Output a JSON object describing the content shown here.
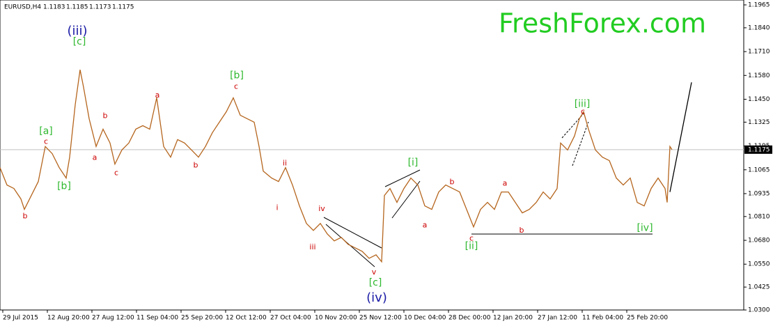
{
  "chart_data": {
    "type": "line",
    "symbol": "EURUSD,H4",
    "ohlc": [
      1.1183,
      1.1185,
      1.1173,
      1.1175
    ],
    "watermark": "FreshForex.com",
    "last_price": 1.1175,
    "xlim": [
      -1,
      266
    ],
    "ylim": [
      1.03,
      1.1965
    ],
    "xticks": [
      {
        "value": 0,
        "label": "29 Jul 2015"
      },
      {
        "value": 16,
        "label": "12 Aug 20:00"
      },
      {
        "value": 32,
        "label": "27 Aug 12:00"
      },
      {
        "value": 48,
        "label": "11 Sep 04:00"
      },
      {
        "value": 64,
        "label": "25 Sep 20:00"
      },
      {
        "value": 80,
        "label": "12 Oct 12:00"
      },
      {
        "value": 96,
        "label": "27 Oct 04:00"
      },
      {
        "value": 112,
        "label": "10 Nov 20:00"
      },
      {
        "value": 128,
        "label": "25 Nov 12:00"
      },
      {
        "value": 144,
        "label": "10 Dec 04:00"
      },
      {
        "value": 160,
        "label": "28 Dec 00:00"
      },
      {
        "value": 176,
        "label": "12 Jan 20:00"
      },
      {
        "value": 192,
        "label": "27 Jan 12:00"
      },
      {
        "value": 208,
        "label": "11 Feb 04:00"
      },
      {
        "value": 224,
        "label": "25 Feb 20:00"
      }
    ],
    "yticks": [
      {
        "value": 1.1965,
        "label": "1.1965"
      },
      {
        "value": 1.184,
        "label": "1.1840"
      },
      {
        "value": 1.171,
        "label": "1.1710"
      },
      {
        "value": 1.158,
        "label": "1.1580"
      },
      {
        "value": 1.145,
        "label": "1.1450"
      },
      {
        "value": 1.1325,
        "label": "1.1325"
      },
      {
        "value": 1.1195,
        "label": "1.1195"
      },
      {
        "value": 1.1065,
        "label": "1.1065"
      },
      {
        "value": 1.0935,
        "label": "1.0935"
      },
      {
        "value": 1.081,
        "label": "1.0810"
      },
      {
        "value": 1.068,
        "label": "1.0680"
      },
      {
        "value": 1.055,
        "label": "1.0550"
      },
      {
        "value": 1.0425,
        "label": "1.0425"
      },
      {
        "value": 1.03,
        "label": "1.0300"
      }
    ],
    "series": [
      {
        "name": "EURUSD",
        "color": "#b5651d",
        "x": [
          -1,
          1.5,
          4,
          6.5,
          7.75,
          10.25,
          12.75,
          15.25,
          17.75,
          20.25,
          22.75,
          24,
          26,
          27.75,
          29,
          31,
          33.5,
          36,
          38.5,
          40.25,
          42.75,
          45.25,
          47.75,
          50.25,
          52.75,
          55.25,
          57.75,
          60.25,
          62.75,
          65.25,
          67.75,
          70.25,
          72.75,
          75.25,
          77.75,
          80.25,
          82.75,
          85.25,
          87.75,
          90.25,
          92,
          93.5,
          96.5,
          99,
          101.5,
          104,
          106.5,
          109,
          111.5,
          114,
          116.5,
          119,
          121.5,
          124,
          126.5,
          129,
          131.5,
          134,
          136,
          137,
          139,
          141.5,
          144,
          146.5,
          149,
          151.5,
          154,
          156.5,
          159,
          161.5,
          164,
          166.5,
          169,
          171.5,
          174,
          176.5,
          179,
          181.5,
          184,
          186.5,
          189,
          191.5,
          194,
          196.5,
          199,
          200.25,
          202.75,
          205.25,
          207,
          208.5,
          210.25,
          212.75,
          215.25,
          217.75,
          220.25,
          222.75,
          225.25,
          227.75,
          230.25,
          232.75,
          235.25,
          237.75,
          238.5,
          239.5,
          240.25
        ],
        "values": [
          1.1077,
          1.0982,
          1.0963,
          1.0906,
          1.0849,
          1.0925,
          1.1001,
          1.1192,
          1.1153,
          1.1077,
          1.102,
          1.1134,
          1.142,
          1.1611,
          1.1515,
          1.1344,
          1.1192,
          1.1287,
          1.1211,
          1.1096,
          1.1173,
          1.1211,
          1.1287,
          1.1306,
          1.1287,
          1.1458,
          1.1192,
          1.1134,
          1.123,
          1.1211,
          1.1173,
          1.1134,
          1.1192,
          1.1268,
          1.1325,
          1.1382,
          1.1458,
          1.1363,
          1.1344,
          1.1325,
          1.1192,
          1.1058,
          1.102,
          1.1001,
          1.1077,
          1.0982,
          1.0868,
          1.0772,
          1.0734,
          1.0772,
          1.0715,
          1.0677,
          1.0696,
          1.0658,
          1.0639,
          1.062,
          1.0582,
          1.0601,
          1.0563,
          1.0925,
          1.0963,
          1.0887,
          1.0963,
          1.102,
          1.0982,
          1.0868,
          1.0849,
          1.0944,
          1.0982,
          1.0963,
          1.0944,
          1.0849,
          1.0753,
          1.0849,
          1.0887,
          1.0849,
          1.0944,
          1.0944,
          1.0887,
          1.083,
          1.0849,
          1.0887,
          1.0944,
          1.0906,
          1.0963,
          1.1211,
          1.1173,
          1.125,
          1.1344,
          1.1382,
          1.1287,
          1.1173,
          1.1134,
          1.1115,
          1.102,
          1.0982,
          1.102,
          1.0887,
          1.0868,
          1.0963,
          1.102,
          1.0963,
          1.0887,
          1.1192,
          1.1175
        ]
      },
      {
        "name": "Projection",
        "color": "#000000",
        "x": [
          239.5,
          247.25
        ],
        "values": [
          1.0944,
          1.1542
        ]
      }
    ],
    "annotations": [
      {
        "text": "(iii)",
        "x": 26.75,
        "y": 1.182,
        "color": "#1a1aa6"
      },
      {
        "text": "[c]",
        "x": 27.5,
        "y": 1.1763,
        "color": "#2eb82e"
      },
      {
        "text": "[a]",
        "x": 15.5,
        "y": 1.1275,
        "color": "#2eb82e"
      },
      {
        "text": "c",
        "x": 15.5,
        "y": 1.1218,
        "color": "#cc0000"
      },
      {
        "text": "[b]",
        "x": 22,
        "y": 1.0974,
        "color": "#2eb82e"
      },
      {
        "text": "b",
        "x": 8,
        "y": 1.0811,
        "color": "#cc0000"
      },
      {
        "text": "a",
        "x": 33,
        "y": 1.1131,
        "color": "#cc0000"
      },
      {
        "text": "b",
        "x": 36.75,
        "y": 1.1359,
        "color": "#cc0000"
      },
      {
        "text": "c",
        "x": 40.75,
        "y": 1.1047,
        "color": "#cc0000"
      },
      {
        "text": "a",
        "x": 55.5,
        "y": 1.147,
        "color": "#cc0000"
      },
      {
        "text": "b",
        "x": 69.25,
        "y": 1.1089,
        "color": "#cc0000"
      },
      {
        "text": "[b]",
        "x": 84,
        "y": 1.158,
        "color": "#2eb82e"
      },
      {
        "text": "c",
        "x": 83.75,
        "y": 1.1519,
        "color": "#cc0000"
      },
      {
        "text": "ii",
        "x": 101.25,
        "y": 1.11,
        "color": "#cc0000"
      },
      {
        "text": "i",
        "x": 98.5,
        "y": 1.0856,
        "color": "#cc0000"
      },
      {
        "text": "iv",
        "x": 114.5,
        "y": 1.0852,
        "color": "#cc0000"
      },
      {
        "text": "iii",
        "x": 111.25,
        "y": 1.0643,
        "color": "#cc0000"
      },
      {
        "text": "v",
        "x": 133.25,
        "y": 1.0506,
        "color": "#cc0000"
      },
      {
        "text": "[c]",
        "x": 133.75,
        "y": 1.0449,
        "color": "#2eb82e"
      },
      {
        "text": "(iv)",
        "x": 134.25,
        "y": 1.0365,
        "color": "#1a1aa6"
      },
      {
        "text": "[i]",
        "x": 147.25,
        "y": 1.1104,
        "color": "#2eb82e"
      },
      {
        "text": "b",
        "x": 161.25,
        "y": 1.0997,
        "color": "#cc0000"
      },
      {
        "text": "a",
        "x": 151.5,
        "y": 1.0761,
        "color": "#cc0000"
      },
      {
        "text": "a",
        "x": 180.25,
        "y": 1.099,
        "color": "#cc0000"
      },
      {
        "text": "b",
        "x": 186.25,
        "y": 1.0734,
        "color": "#cc0000"
      },
      {
        "text": "c",
        "x": 168.25,
        "y": 1.0689,
        "color": "#cc0000"
      },
      {
        "text": "[ii]",
        "x": 168.25,
        "y": 1.0647,
        "color": "#2eb82e"
      },
      {
        "text": "[iii]",
        "x": 208,
        "y": 1.1424,
        "color": "#2eb82e"
      },
      {
        "text": "c",
        "x": 208.25,
        "y": 1.1382,
        "color": "#cc0000"
      },
      {
        "text": "[iv]",
        "x": 230.5,
        "y": 1.0746,
        "color": "#2eb82e"
      }
    ]
  }
}
